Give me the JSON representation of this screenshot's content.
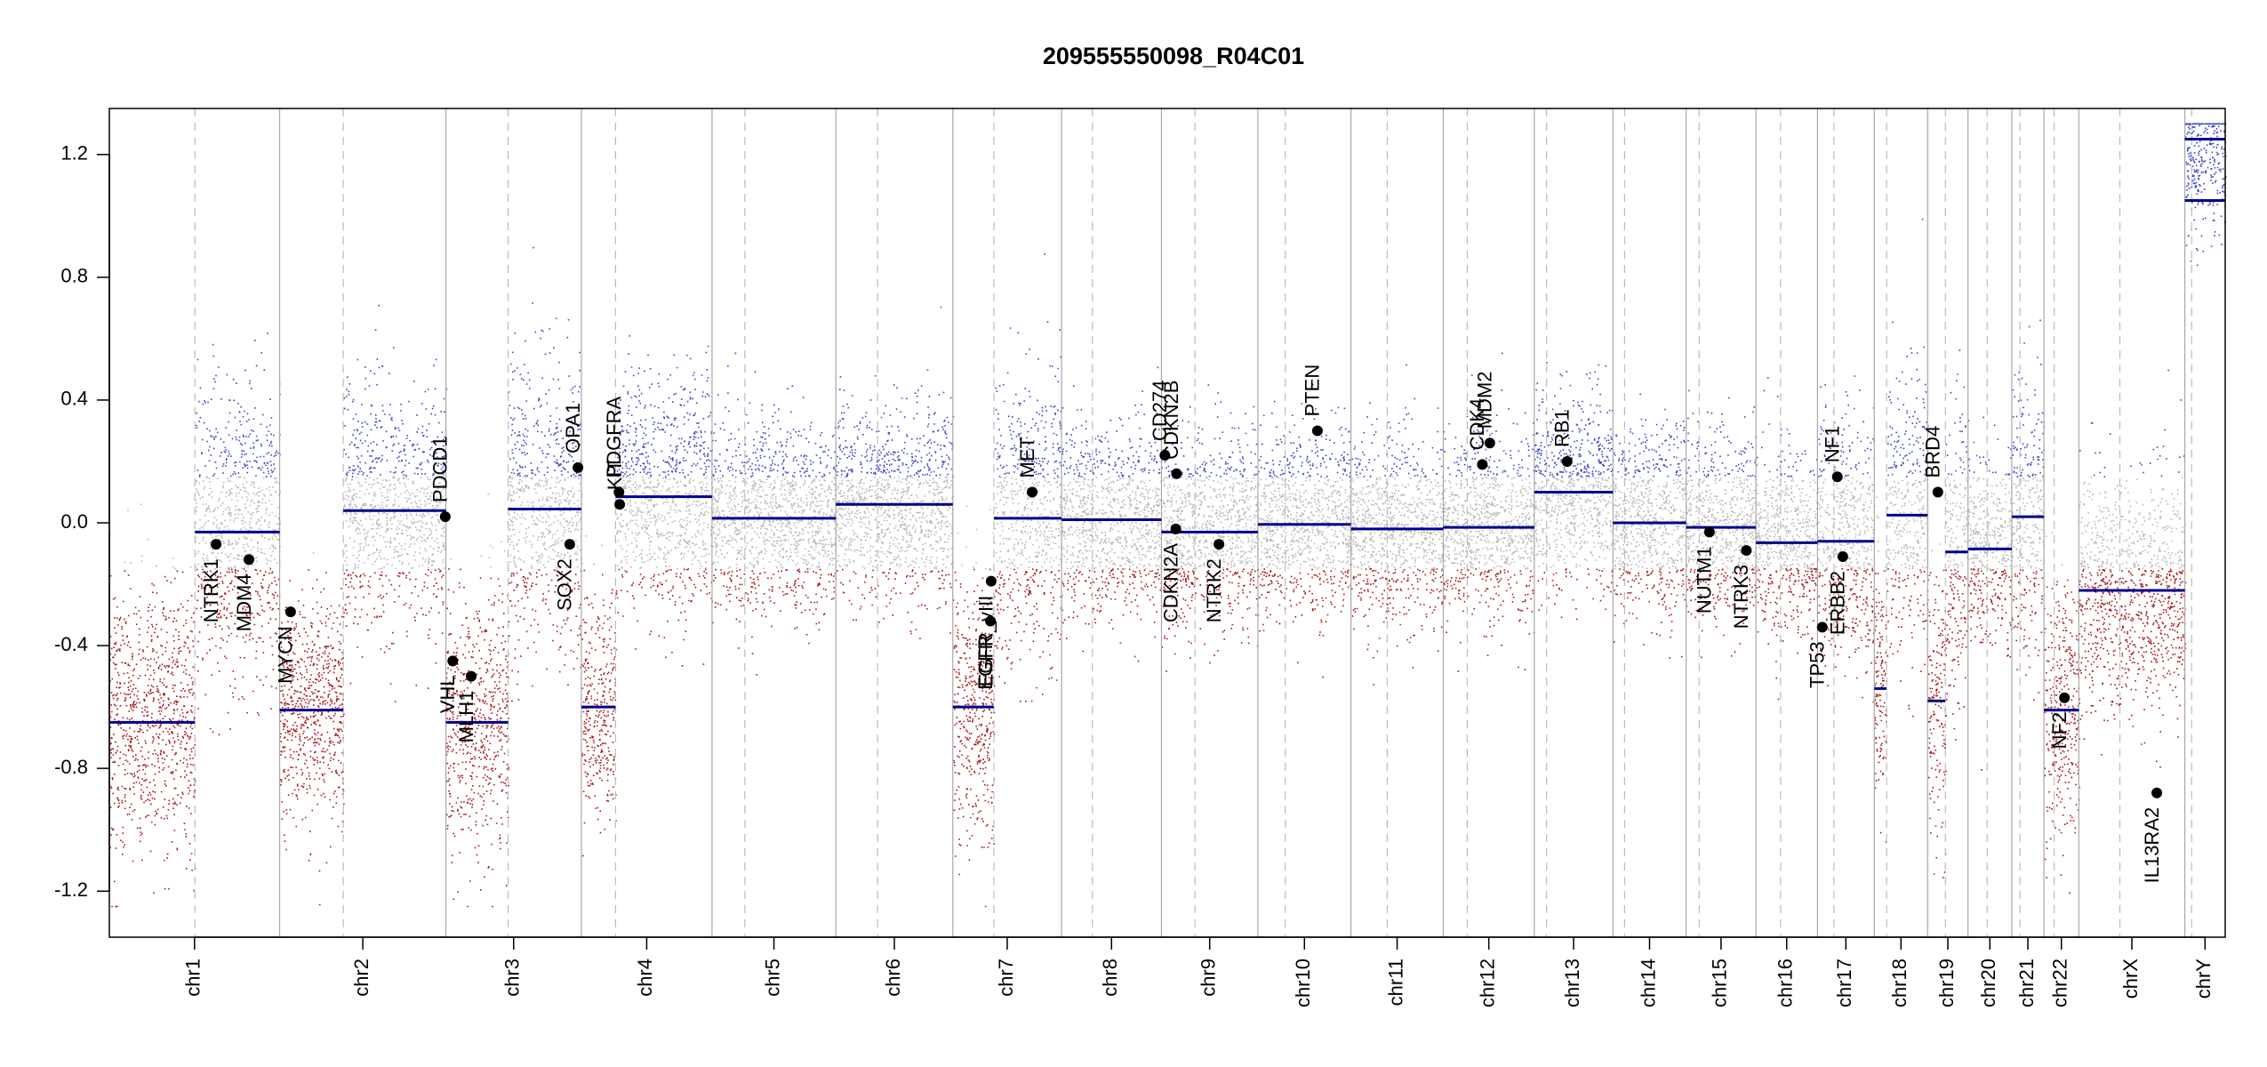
{
  "chart_data": {
    "type": "scatter",
    "title": "209555550098_R04C01",
    "xlabel": "",
    "ylabel": "",
    "ylim": [
      -1.35,
      1.35
    ],
    "y_ticks": [
      -1.2,
      -0.8,
      -0.4,
      0.0,
      0.4,
      0.8,
      1.2
    ],
    "y_tick_labels": [
      "-1.2",
      "-0.8",
      "-0.4",
      "0.0",
      "0.4",
      "0.8",
      "1.2"
    ],
    "x_unit": "Mb",
    "colors": {
      "gain": "#3b45c8",
      "neutral": "#b7b7b7",
      "loss": "#a81818",
      "segment": "#00008b",
      "gene": "#000000"
    },
    "chromosomes": [
      {
        "name": "chr1",
        "len": 249,
        "cen": 125,
        "base": 0.0,
        "spread": 0.3
      },
      {
        "name": "chr2",
        "len": 243,
        "cen": 93,
        "base": 0.08,
        "spread": 0.25
      },
      {
        "name": "chr3",
        "len": 198,
        "cen": 91,
        "base": 0.0,
        "spread": 0.3
      },
      {
        "name": "chr4",
        "len": 191,
        "cen": 50,
        "base": 0.05,
        "spread": 0.25
      },
      {
        "name": "chr5",
        "len": 181,
        "cen": 48,
        "base": 0.02,
        "spread": 0.2
      },
      {
        "name": "chr6",
        "len": 171,
        "cen": 61,
        "base": 0.06,
        "spread": 0.2
      },
      {
        "name": "chr7",
        "len": 159,
        "cen": 60,
        "base": 0.0,
        "spread": 0.3
      },
      {
        "name": "chr8",
        "len": 146,
        "cen": 45,
        "base": 0.01,
        "spread": 0.2
      },
      {
        "name": "chr9",
        "len": 141,
        "cen": 49,
        "base": -0.03,
        "spread": 0.2
      },
      {
        "name": "chr10",
        "len": 136,
        "cen": 40,
        "base": 0.0,
        "spread": 0.2
      },
      {
        "name": "chr11",
        "len": 135,
        "cen": 53,
        "base": -0.02,
        "spread": 0.2
      },
      {
        "name": "chr12",
        "len": 133,
        "cen": 35,
        "base": -0.01,
        "spread": 0.2
      },
      {
        "name": "chr13",
        "len": 115,
        "cen": 18,
        "base": 0.1,
        "spread": 0.2
      },
      {
        "name": "chr14",
        "len": 107,
        "cen": 17,
        "base": 0.0,
        "spread": 0.2
      },
      {
        "name": "chr15",
        "len": 102,
        "cen": 19,
        "base": -0.02,
        "spread": 0.2
      },
      {
        "name": "chr16",
        "len": 90,
        "cen": 36,
        "base": -0.06,
        "spread": 0.2
      },
      {
        "name": "chr17",
        "len": 83,
        "cen": 24,
        "base": -0.06,
        "spread": 0.25
      },
      {
        "name": "chr18",
        "len": 78,
        "cen": 18,
        "base": 0.0,
        "spread": 0.3
      },
      {
        "name": "chr19",
        "len": 59,
        "cen": 26,
        "base": -0.09,
        "spread": 0.3
      },
      {
        "name": "chr20",
        "len": 64,
        "cen": 28,
        "base": -0.08,
        "spread": 0.2
      },
      {
        "name": "chr21",
        "len": 47,
        "cen": 12,
        "base": 0.02,
        "spread": 0.3
      },
      {
        "name": "chr22",
        "len": 51,
        "cen": 15,
        "base": -0.4,
        "spread": 0.3
      },
      {
        "name": "chrX",
        "len": 155,
        "cen": 60,
        "base": -0.22,
        "spread": 0.25
      },
      {
        "name": "chrY",
        "len": 59,
        "cen": 10,
        "base": 0.9,
        "spread": 0.2
      }
    ],
    "segments": [
      {
        "chr": "chr1",
        "start": 0,
        "end": 125,
        "value": -0.65
      },
      {
        "chr": "chr1",
        "start": 125,
        "end": 249,
        "value": -0.03
      },
      {
        "chr": "chr2",
        "start": 0,
        "end": 93,
        "value": -0.61
      },
      {
        "chr": "chr2",
        "start": 93,
        "end": 243,
        "value": 0.04
      },
      {
        "chr": "chr3",
        "start": 0,
        "end": 91,
        "value": -0.65
      },
      {
        "chr": "chr3",
        "start": 91,
        "end": 198,
        "value": 0.045
      },
      {
        "chr": "chr4",
        "start": 0,
        "end": 50,
        "value": -0.6
      },
      {
        "chr": "chr4",
        "start": 50,
        "end": 191,
        "value": 0.085
      },
      {
        "chr": "chr5",
        "start": 0,
        "end": 181,
        "value": 0.015
      },
      {
        "chr": "chr6",
        "start": 0,
        "end": 171,
        "value": 0.06
      },
      {
        "chr": "chr7",
        "start": 0,
        "end": 60,
        "value": -0.6
      },
      {
        "chr": "chr7",
        "start": 60,
        "end": 159,
        "value": 0.015
      },
      {
        "chr": "chr8",
        "start": 0,
        "end": 146,
        "value": 0.01
      },
      {
        "chr": "chr9",
        "start": 0,
        "end": 141,
        "value": -0.03
      },
      {
        "chr": "chr10",
        "start": 0,
        "end": 136,
        "value": -0.005
      },
      {
        "chr": "chr11",
        "start": 0,
        "end": 135,
        "value": -0.02
      },
      {
        "chr": "chr12",
        "start": 0,
        "end": 133,
        "value": -0.015
      },
      {
        "chr": "chr13",
        "start": 0,
        "end": 115,
        "value": 0.1
      },
      {
        "chr": "chr14",
        "start": 0,
        "end": 107,
        "value": 0.0
      },
      {
        "chr": "chr15",
        "start": 0,
        "end": 102,
        "value": -0.015
      },
      {
        "chr": "chr16",
        "start": 0,
        "end": 90,
        "value": -0.065
      },
      {
        "chr": "chr17",
        "start": 0,
        "end": 83,
        "value": -0.06
      },
      {
        "chr": "chr18",
        "start": 0,
        "end": 18,
        "value": -0.54
      },
      {
        "chr": "chr18",
        "start": 18,
        "end": 78,
        "value": 0.025
      },
      {
        "chr": "chr19",
        "start": 0,
        "end": 26,
        "value": -0.58
      },
      {
        "chr": "chr19",
        "start": 26,
        "end": 59,
        "value": -0.095
      },
      {
        "chr": "chr20",
        "start": 0,
        "end": 64,
        "value": -0.085
      },
      {
        "chr": "chr21",
        "start": 0,
        "end": 47,
        "value": 0.02
      },
      {
        "chr": "chr22",
        "start": 0,
        "end": 51,
        "value": -0.61
      },
      {
        "chr": "chrX",
        "start": 0,
        "end": 155,
        "value": -0.22
      },
      {
        "chr": "chrY",
        "start": 0,
        "end": 59,
        "value": 1.25
      },
      {
        "chr": "chrY",
        "start": 0,
        "end": 59,
        "value": 1.05
      }
    ],
    "genes": [
      {
        "name": "NTRK1",
        "chr": "chr1",
        "pos": 156,
        "value": -0.07
      },
      {
        "name": "MDM4",
        "chr": "chr1",
        "pos": 204,
        "value": -0.12
      },
      {
        "name": "MYCN",
        "chr": "chr2",
        "pos": 16,
        "value": -0.29
      },
      {
        "name": "PDCD1",
        "chr": "chr2",
        "pos": 242,
        "value": 0.02
      },
      {
        "name": "VHL",
        "chr": "chr3",
        "pos": 10,
        "value": -0.45
      },
      {
        "name": "MLH1",
        "chr": "chr3",
        "pos": 37,
        "value": -0.5
      },
      {
        "name": "SOX2",
        "chr": "chr3",
        "pos": 181,
        "value": -0.07
      },
      {
        "name": "OPA1",
        "chr": "chr3",
        "pos": 193,
        "value": 0.18
      },
      {
        "name": "PDGFRA",
        "chr": "chr4",
        "pos": 55,
        "value": 0.1
      },
      {
        "name": "KIT",
        "chr": "chr4",
        "pos": 56,
        "value": 0.06
      },
      {
        "name": "EGFR",
        "chr": "chr7",
        "pos": 55,
        "value": -0.32
      },
      {
        "name": "EGFR_vIII",
        "chr": "chr7",
        "pos": 56,
        "value": -0.19
      },
      {
        "name": "MET",
        "chr": "chr7",
        "pos": 116,
        "value": 0.1
      },
      {
        "name": "CD274",
        "chr": "chr9",
        "pos": 5,
        "value": 0.22
      },
      {
        "name": "CDKN2B",
        "chr": "chr9",
        "pos": 22,
        "value": 0.16
      },
      {
        "name": "CDKN2A",
        "chr": "chr9",
        "pos": 21,
        "value": -0.02
      },
      {
        "name": "NTRK2",
        "chr": "chr9",
        "pos": 84,
        "value": -0.07
      },
      {
        "name": "PTEN",
        "chr": "chr10",
        "pos": 87,
        "value": 0.3
      },
      {
        "name": "CDK4",
        "chr": "chr12",
        "pos": 57,
        "value": 0.19
      },
      {
        "name": "MDM2",
        "chr": "chr12",
        "pos": 68,
        "value": 0.26
      },
      {
        "name": "RB1",
        "chr": "chr13",
        "pos": 48,
        "value": 0.2
      },
      {
        "name": "NUTM1",
        "chr": "chr15",
        "pos": 34,
        "value": -0.03
      },
      {
        "name": "NTRK3",
        "chr": "chr15",
        "pos": 88,
        "value": -0.09
      },
      {
        "name": "TP53",
        "chr": "chr17",
        "pos": 7,
        "value": -0.34
      },
      {
        "name": "NF1",
        "chr": "chr17",
        "pos": 29,
        "value": 0.15
      },
      {
        "name": "ERBB2",
        "chr": "chr17",
        "pos": 37,
        "value": -0.11
      },
      {
        "name": "BRD4",
        "chr": "chr19",
        "pos": 15,
        "value": 0.1
      },
      {
        "name": "NF2",
        "chr": "chr22",
        "pos": 30,
        "value": -0.57
      },
      {
        "name": "IL13RA2",
        "chrchrX": "",
        "chr": "chrX",
        "pos": 114,
        "value": -0.88
      }
    ]
  }
}
